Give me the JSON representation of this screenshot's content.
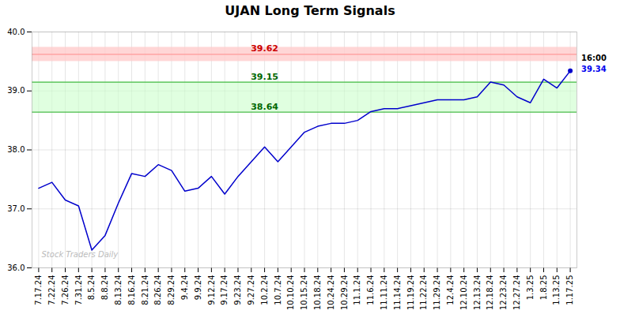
{
  "chart_data": {
    "type": "line",
    "title": "UJAN Long Term Signals",
    "categories": [
      "7.17.24",
      "7.22.24",
      "7.26.24",
      "7.31.24",
      "8.5.24",
      "8.8.24",
      "8.13.24",
      "8.16.24",
      "8.21.24",
      "8.26.24",
      "8.29.24",
      "9.4.24",
      "9.9.24",
      "9.12.24",
      "9.17.24",
      "9.23.24",
      "9.27.24",
      "10.2.24",
      "10.7.24",
      "10.10.24",
      "10.15.24",
      "10.18.24",
      "10.24.24",
      "10.29.24",
      "11.1.24",
      "11.6.24",
      "11.11.24",
      "11.14.24",
      "11.19.24",
      "11.22.24",
      "11.29.24",
      "12.4.24",
      "12.10.24",
      "12.13.24",
      "12.18.24",
      "12.23.24",
      "12.27.24",
      "1.3.25",
      "1.8.25",
      "1.13.25",
      "1.17.25"
    ],
    "values": [
      37.35,
      37.45,
      37.15,
      37.05,
      36.3,
      36.55,
      37.1,
      37.6,
      37.55,
      37.75,
      37.65,
      37.3,
      37.35,
      37.55,
      37.25,
      37.55,
      37.8,
      38.05,
      37.8,
      38.05,
      38.3,
      38.4,
      38.45,
      38.45,
      38.5,
      38.65,
      38.7,
      38.7,
      38.75,
      38.8,
      38.85,
      38.85,
      38.85,
      38.9,
      39.15,
      39.1,
      38.9,
      38.8,
      39.2,
      39.05,
      39.34
    ],
    "color": "#0000cc",
    "ylim": [
      36,
      40
    ],
    "yticks": [
      36,
      37,
      38,
      39,
      40
    ],
    "grid": true,
    "reference_lines": [
      {
        "value": 39.62,
        "label": "39.62",
        "color": "#ff9999",
        "label_color": "#cc0000"
      },
      {
        "value": 39.15,
        "label": "39.15",
        "color": "#44bb44",
        "label_color": "#006600"
      },
      {
        "value": 38.64,
        "label": "38.64",
        "color": "#44bb44",
        "label_color": "#006600"
      }
    ],
    "bands": [
      {
        "from": 39.5,
        "to": 39.74,
        "color": "#ffcccc"
      },
      {
        "from": 38.64,
        "to": 39.15,
        "color": "#ccffcc"
      }
    ],
    "annotations": [
      {
        "text": "16:00",
        "color": "#000000"
      },
      {
        "text": "39.34",
        "color": "#0000ee"
      }
    ],
    "watermark": {
      "text": "Stock Traders Daily",
      "color": "#bbbbbb"
    }
  }
}
